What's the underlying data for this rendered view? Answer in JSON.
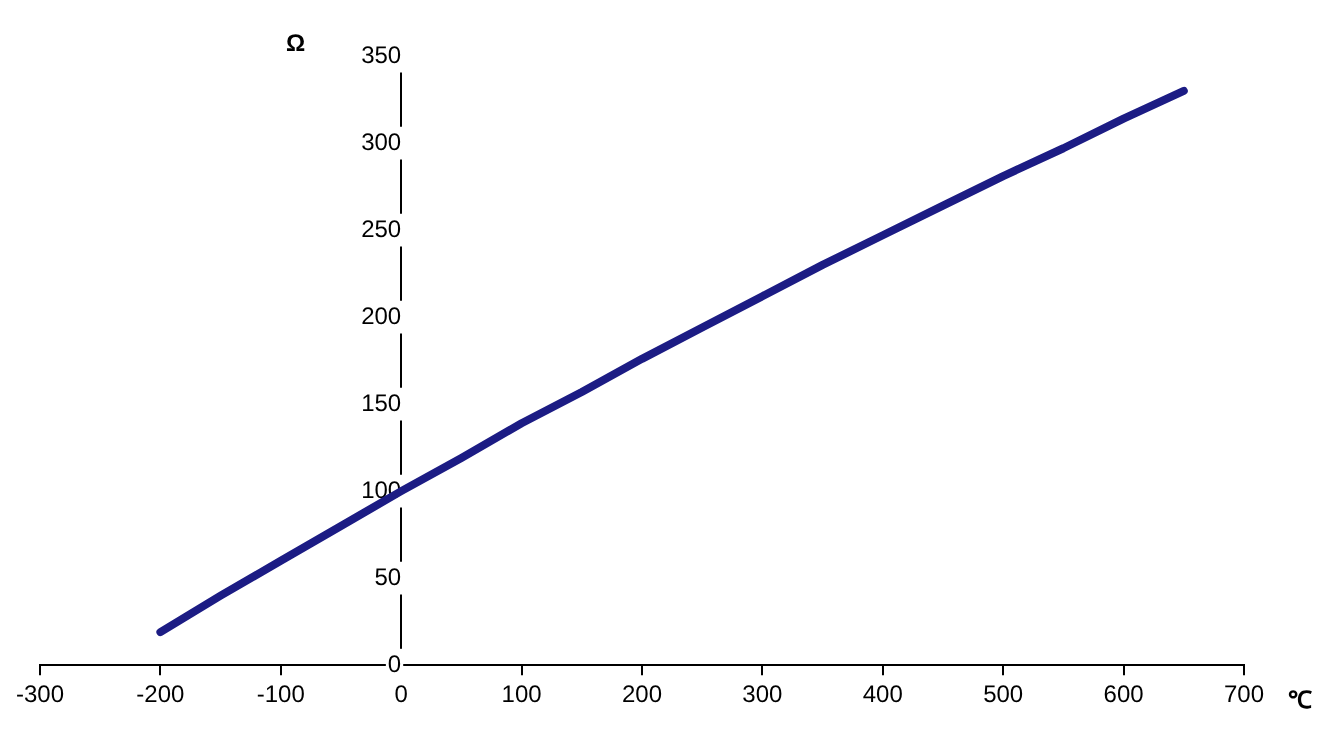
{
  "chart_data": {
    "type": "line",
    "xlabel": "℃",
    "ylabel": "Ω",
    "x": [
      -200,
      -150,
      -100,
      -50,
      0,
      50,
      100,
      150,
      200,
      250,
      300,
      350,
      400,
      450,
      500,
      550,
      600,
      650
    ],
    "series": [
      {
        "color": "#1c1c84",
        "values": [
          19,
          40,
          60,
          80,
          100,
          119,
          139,
          157,
          176,
          194,
          212,
          230,
          247,
          264,
          281,
          297,
          314,
          330
        ]
      }
    ],
    "xlim": [
      -300,
      700
    ],
    "xticks": [
      -300,
      -200,
      -100,
      0,
      100,
      200,
      300,
      400,
      500,
      600,
      700
    ],
    "ylim": [
      0,
      350
    ],
    "yticks": [
      0,
      50,
      100,
      150,
      200,
      250,
      300,
      350
    ],
    "grid": false,
    "legend": false,
    "marker": "none",
    "line_style": "solid"
  }
}
